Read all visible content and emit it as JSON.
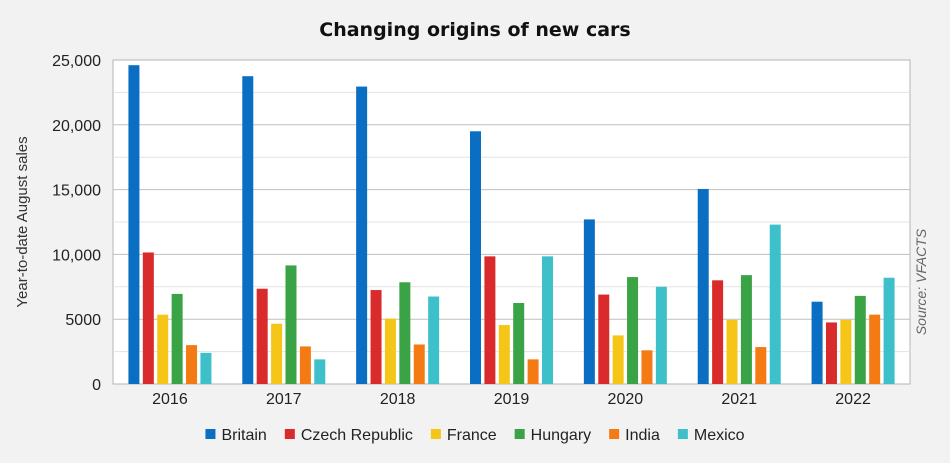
{
  "chart_data": {
    "type": "bar",
    "title": "Changing origins of new cars",
    "xlabel": "",
    "ylabel": "Year-to-date August sales",
    "source": "Source: VFACTS",
    "categories": [
      "2016",
      "2017",
      "2018",
      "2019",
      "2020",
      "2021",
      "2022"
    ],
    "ylim": [
      0,
      25000
    ],
    "yticks": [
      0,
      5000,
      10000,
      15000,
      20000,
      25000
    ],
    "ytick_labels": [
      "0",
      "5000",
      "10,000",
      "15,000",
      "20,000",
      "25,000"
    ],
    "grid": true,
    "legend_position": "bottom",
    "series": [
      {
        "name": "Britain",
        "color": "#0a6fc2",
        "values": [
          24600,
          23750,
          22950,
          19500,
          12700,
          15050,
          6350
        ]
      },
      {
        "name": "Czech Republic",
        "color": "#d92b2b",
        "values": [
          10150,
          7350,
          7250,
          9850,
          6900,
          8000,
          4750
        ]
      },
      {
        "name": "France",
        "color": "#f5c518",
        "values": [
          5350,
          4650,
          5050,
          4550,
          3750,
          4950,
          4950
        ]
      },
      {
        "name": "Hungary",
        "color": "#3aa346",
        "values": [
          6950,
          9150,
          7850,
          6250,
          8250,
          8400,
          6800
        ]
      },
      {
        "name": "India",
        "color": "#f47a14",
        "values": [
          3000,
          2900,
          3050,
          1900,
          2600,
          2850,
          5350
        ]
      },
      {
        "name": "Mexico",
        "color": "#3ec0cb",
        "values": [
          2400,
          1900,
          6750,
          9850,
          7500,
          12300,
          8200
        ]
      }
    ]
  }
}
